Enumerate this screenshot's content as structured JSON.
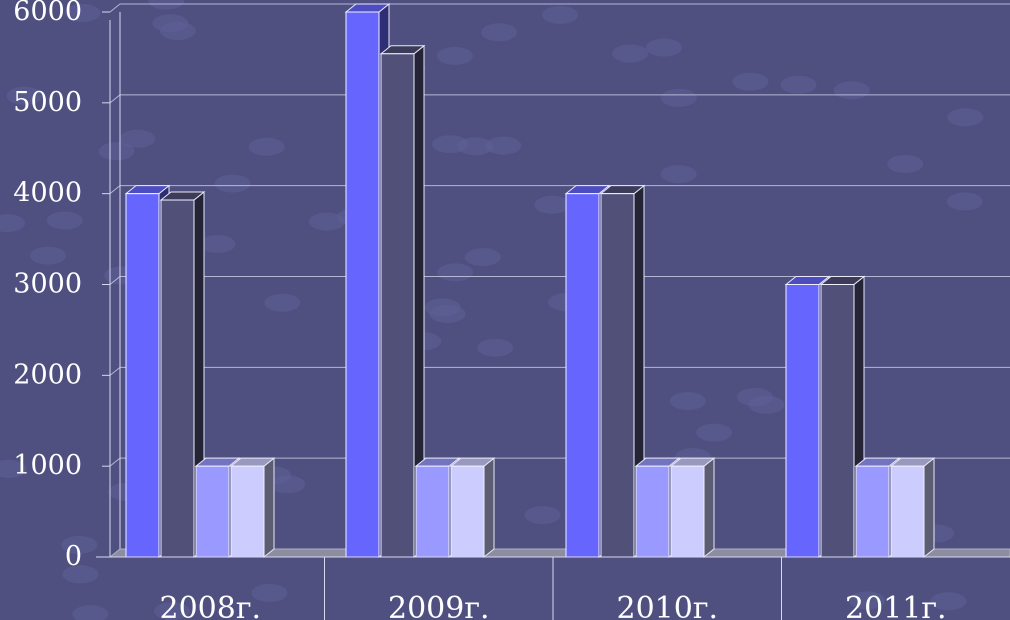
{
  "chart_data": {
    "type": "bar",
    "title": "",
    "xlabel": "",
    "ylabel": "",
    "categories": [
      "2008г.",
      "2009г.",
      "2010г.",
      "2011г."
    ],
    "series": [
      {
        "values": [
          4000,
          6000,
          4000,
          3000
        ],
        "color": "#6666ff"
      },
      {
        "values": [
          3930,
          5540,
          4000,
          3000
        ],
        "color": "#505078"
      },
      {
        "values": [
          1000,
          1000,
          1000,
          1000
        ],
        "color": "#9999ff"
      },
      {
        "values": [
          1000,
          1000,
          1000,
          1000
        ],
        "color": "#ccccff"
      }
    ],
    "ylim": [
      0,
      6000
    ],
    "yticks": [
      "0",
      "1000",
      "2000",
      "3000",
      "4000",
      "5000",
      "6000"
    ],
    "grid": true,
    "legend": "none",
    "style": "3d-clustered-column"
  },
  "colors": {
    "background": "#4f5080",
    "grid": "#d8d8f0",
    "floor": "#8d8da2",
    "text": "#ffffff"
  }
}
